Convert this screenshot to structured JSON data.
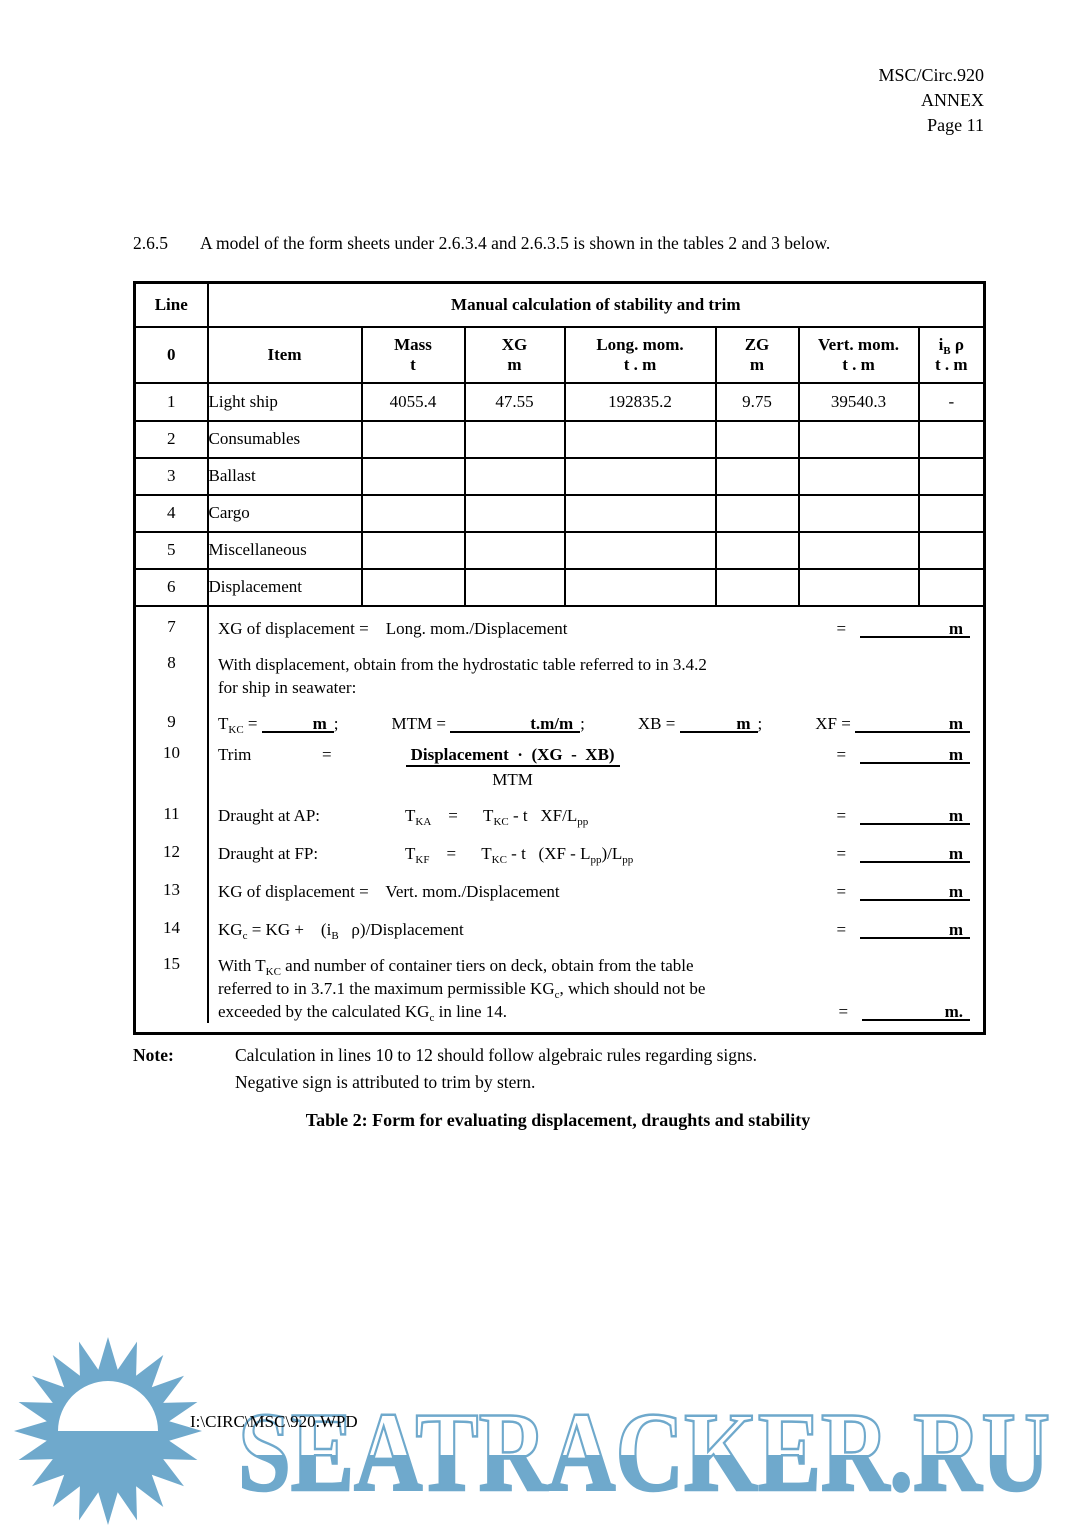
{
  "doc_header": {
    "line1": "MSC/Circ.920",
    "line2": "ANNEX",
    "line3": "Page 11"
  },
  "intro": {
    "number": "2.6.5",
    "text": "A model of the form sheets under 2.6.3.4 and 2.6.3.5 is shown in the tables 2 and 3 below."
  },
  "table2": {
    "corner_label": "Line",
    "title": "Manual calculation of stability and trim",
    "columns": [
      {
        "label": "0",
        "unit": ""
      },
      {
        "label": "Item",
        "unit": ""
      },
      {
        "label": "Mass",
        "unit": "t"
      },
      {
        "label": "XG",
        "unit": "m"
      },
      {
        "label": "Long. mom.",
        "unit": "t . m"
      },
      {
        "label": "ZG",
        "unit": "m"
      },
      {
        "label": "Vert. mom.",
        "unit": "t . m"
      },
      {
        "label": "i_{B} ρ",
        "unit": "t . m"
      }
    ],
    "rows": [
      {
        "num": "1",
        "item": "Light ship",
        "mass": "4055.4",
        "xg": "47.55",
        "long_mom": "192835.2",
        "zg": "9.75",
        "vert_mom": "39540.3",
        "ib": "-"
      },
      {
        "num": "2",
        "item": "Consumables",
        "mass": "",
        "xg": "",
        "long_mom": "",
        "zg": "",
        "vert_mom": "",
        "ib": ""
      },
      {
        "num": "3",
        "item": "Ballast",
        "mass": "",
        "xg": "",
        "long_mom": "",
        "zg": "",
        "vert_mom": "",
        "ib": ""
      },
      {
        "num": "4",
        "item": "Cargo",
        "mass": "",
        "xg": "",
        "long_mom": "",
        "zg": "",
        "vert_mom": "",
        "ib": ""
      },
      {
        "num": "5",
        "item": "Miscellaneous",
        "mass": "",
        "xg": "",
        "long_mom": "",
        "zg": "",
        "vert_mom": "",
        "ib": ""
      },
      {
        "num": "6",
        "item": "Displacement",
        "mass": "",
        "xg": "",
        "long_mom": "",
        "zg": "",
        "vert_mom": "",
        "ib": ""
      }
    ],
    "calc": {
      "l7": {
        "num": "7",
        "text": "XG of displacement =    Long. mom./Displacement",
        "eq": "=",
        "unit": "m"
      },
      "l8": {
        "num": "8",
        "text1": "With displacement, obtain from the hydrostatic table referred to in 3.4.2",
        "text2": "for ship in seawater:"
      },
      "l9": {
        "num": "9",
        "g1": "T_{KC} =",
        "u1": "m",
        "s1": ";",
        "g2": "MTM =",
        "u2": "t.m/m",
        "s2": ";",
        "g3": "XB =",
        "u3": "m",
        "s3": ";",
        "g4": "XF =",
        "u4": "m"
      },
      "l10": {
        "num": "10",
        "label": "Trim",
        "eq1": "=",
        "frac_num": "Displacement  ·  (XG  -  XB)",
        "frac_den": "MTM",
        "eq2": "=",
        "unit": "m"
      },
      "l11": {
        "num": "11",
        "label": "Draught at AP:",
        "formula": "T_{KA}    =      T_{KC} - t   XF/L_{pp}",
        "eq": "=",
        "unit": "m"
      },
      "l12": {
        "num": "12",
        "label": "Draught at FP:",
        "formula": "T_{KF}    =      T_{KC} - t   (XF - L_{pp})/L_{pp}",
        "eq": "=",
        "unit": "m"
      },
      "l13": {
        "num": "13",
        "text": "KG of displacement =    Vert. mom./Displacement",
        "eq": "=",
        "unit": "m"
      },
      "l14": {
        "num": "14",
        "text": "KG_{c} = KG +    (i_{B}   ρ)/Displacement",
        "eq": "=",
        "unit": "m"
      },
      "l15": {
        "num": "15",
        "text1": "With T_{KC} and number of container tiers on deck, obtain from the table",
        "text2": "referred to in 3.7.1 the maximum permissible KG_{c}, which should not be",
        "text3": "exceeded by the calculated KG_{c} in line 14.",
        "eq": "=",
        "unit": "m."
      }
    }
  },
  "note": {
    "label": "Note:",
    "line1": "Calculation in lines 10 to 12 should follow algebraic rules regarding signs.",
    "line2": "Negative sign is attributed to trim by stern."
  },
  "caption": "Table 2:  Form for evaluating displacement, draughts and stability",
  "footer": {
    "file_path": "I:\\CIRC\\MSC\\920.WPD",
    "watermark": "SEATRACKER.RU"
  },
  "colors": {
    "watermark_blue": "#6FA9CC",
    "ink": "#000000"
  }
}
